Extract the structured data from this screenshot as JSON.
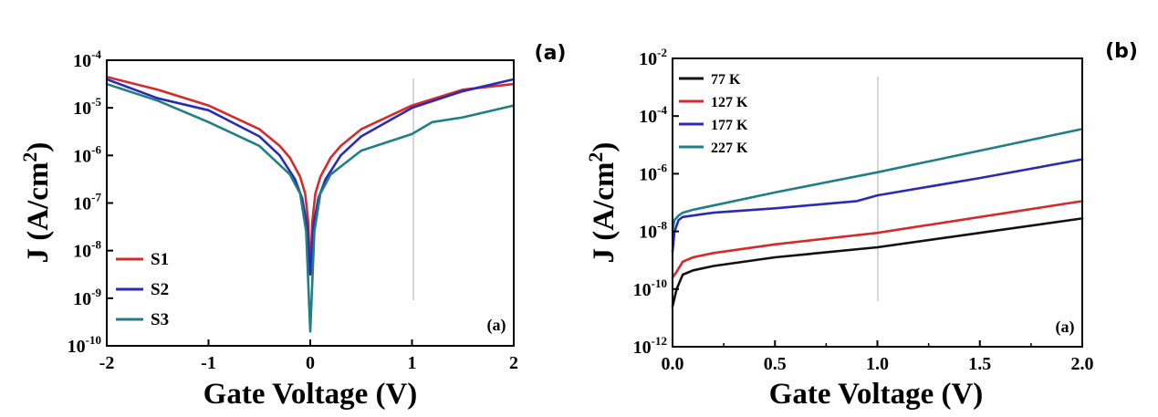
{
  "chart_data": [
    {
      "type": "line",
      "panel_label": "(a)",
      "inner_label": "(a)",
      "xlabel": "Gate Voltage (V)",
      "ylabel": "J (A/cm²)",
      "ylabel_base": "J (A/cm",
      "ylabel_sup": "2",
      "ylabel_end": ")",
      "xscale": "linear",
      "yscale": "log",
      "xlim": [
        -2,
        2
      ],
      "ylim_exp": [
        -10,
        -4
      ],
      "xticks": [
        -2,
        -1,
        0,
        1,
        2
      ],
      "xtick_labels": [
        "-2",
        "-1",
        "0",
        "1",
        "2"
      ],
      "ytick_exps": [
        -10,
        -9,
        -8,
        -7,
        -6,
        -5,
        -4
      ],
      "ytick_exp_labels": [
        "-10",
        "-9",
        "-8",
        "-7",
        "-6",
        "-5",
        "-4"
      ],
      "legend_position": "lower-left",
      "series": [
        {
          "name": "S1",
          "color": "#d42a2a",
          "x": [
            -2.0,
            -1.5,
            -1.0,
            -0.5,
            -0.3,
            -0.2,
            -0.1,
            -0.05,
            -0.02,
            0.0,
            0.02,
            0.05,
            0.1,
            0.2,
            0.3,
            0.5,
            1.0,
            1.5,
            2.0
          ],
          "log10_y": [
            -4.35,
            -4.62,
            -4.95,
            -5.45,
            -5.8,
            -6.05,
            -6.45,
            -6.8,
            -7.4,
            -8.5,
            -7.4,
            -6.8,
            -6.45,
            -6.05,
            -5.8,
            -5.45,
            -4.95,
            -4.62,
            -4.5
          ]
        },
        {
          "name": "S2",
          "color": "#2a2ab4",
          "x": [
            -2.0,
            -1.5,
            -1.0,
            -0.5,
            -0.3,
            -0.15,
            -0.08,
            -0.03,
            0.0,
            0.03,
            0.08,
            0.15,
            0.3,
            0.5,
            1.0,
            1.5,
            2.0
          ],
          "log10_y": [
            -4.4,
            -4.8,
            -5.05,
            -5.6,
            -6.0,
            -6.5,
            -6.9,
            -7.5,
            -8.5,
            -7.5,
            -6.9,
            -6.5,
            -6.0,
            -5.6,
            -5.0,
            -4.65,
            -4.4
          ]
        },
        {
          "name": "S3",
          "color": "#1f7f86",
          "x": [
            -2.0,
            -1.5,
            -1.0,
            -0.5,
            -0.2,
            -0.1,
            -0.04,
            0.0,
            0.04,
            0.1,
            0.2,
            0.5,
            1.0,
            1.2,
            1.5,
            2.0
          ],
          "log10_y": [
            -4.5,
            -4.85,
            -5.3,
            -5.8,
            -6.4,
            -6.8,
            -7.6,
            -9.7,
            -7.6,
            -6.8,
            -6.4,
            -5.9,
            -5.55,
            -5.3,
            -5.2,
            -4.95
          ]
        }
      ]
    },
    {
      "type": "line",
      "panel_label": "(b)",
      "inner_label": "(a)",
      "xlabel": "Gate Voltage (V)",
      "ylabel": "J (A/cm²)",
      "ylabel_base": "J (A/cm",
      "ylabel_sup": "2",
      "ylabel_end": ")",
      "xscale": "linear",
      "yscale": "log",
      "xlim": [
        0,
        2
      ],
      "ylim_exp": [
        -12,
        -2
      ],
      "xticks": [
        0,
        0.5,
        1,
        1.5,
        2
      ],
      "xtick_labels": [
        "0.0",
        "0.5",
        "1.0",
        "1.5",
        "2.0"
      ],
      "ytick_exps": [
        -12,
        -10,
        -8,
        -6,
        -4,
        -2
      ],
      "ytick_exp_labels": [
        "-12",
        "-10",
        "-8",
        "-6",
        "-4",
        "-2"
      ],
      "legend_position": "top-left",
      "series": [
        {
          "name": "77 K",
          "color": "#111111",
          "x": [
            0.0,
            0.02,
            0.05,
            0.1,
            0.2,
            0.5,
            1.0,
            1.5,
            2.0
          ],
          "log10_y": [
            -10.6,
            -10.0,
            -9.5,
            -9.35,
            -9.2,
            -8.9,
            -8.55,
            -8.05,
            -7.55
          ]
        },
        {
          "name": "127 K",
          "color": "#d42a2a",
          "x": [
            0.0,
            0.02,
            0.05,
            0.1,
            0.2,
            0.5,
            1.0,
            1.5,
            2.0
          ],
          "log10_y": [
            -9.6,
            -9.4,
            -9.05,
            -8.9,
            -8.75,
            -8.45,
            -8.05,
            -7.5,
            -6.95
          ]
        },
        {
          "name": "177 K",
          "color": "#2a2ab4",
          "x": [
            0.0,
            0.01,
            0.03,
            0.05,
            0.1,
            0.2,
            0.5,
            0.9,
            1.0,
            1.5,
            2.0
          ],
          "log10_y": [
            -8.7,
            -8.0,
            -7.6,
            -7.5,
            -7.45,
            -7.35,
            -7.2,
            -6.95,
            -6.75,
            -6.15,
            -5.5
          ]
        },
        {
          "name": "227 K",
          "color": "#1f7f86",
          "x": [
            0.0,
            0.01,
            0.03,
            0.05,
            0.1,
            0.2,
            0.5,
            1.0,
            1.5,
            2.0
          ],
          "log10_y": [
            -7.95,
            -7.6,
            -7.45,
            -7.35,
            -7.25,
            -7.1,
            -6.65,
            -5.95,
            -5.2,
            -4.45
          ]
        }
      ]
    }
  ]
}
